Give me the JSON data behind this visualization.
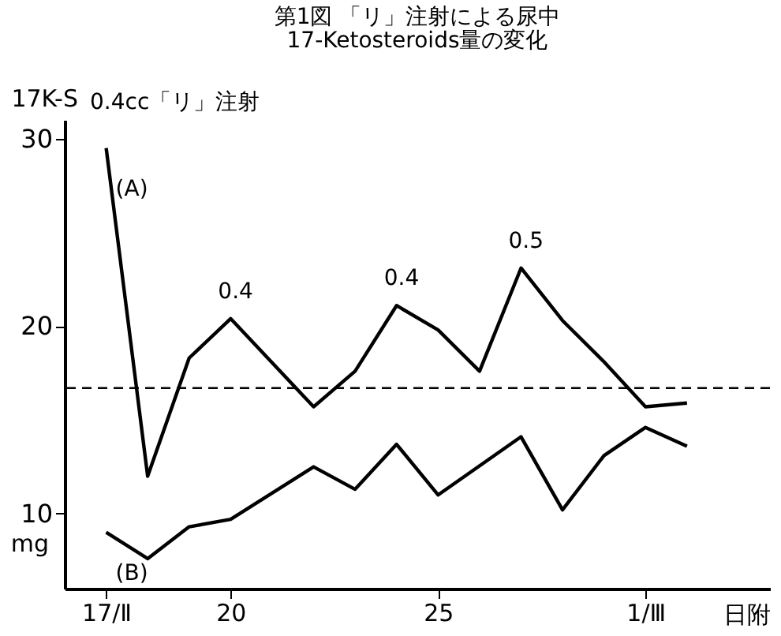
{
  "chart_data": {
    "type": "line",
    "title": "第1図 「リ」注射による尿中",
    "subtitle": "17-Ketosteroids量の変化",
    "xlabel": "日附",
    "ylabel": "17K-S",
    "series": [
      {
        "name": "(A)",
        "color": "#000000",
        "x": [
          "--02-17",
          "--02-18",
          "--02-19",
          "--02-20",
          "--02-22",
          "--02-23",
          "--02-24",
          "--02-25",
          "--02-26",
          "--02-27",
          "--02-28",
          "--02-29",
          "--03-01",
          "--03-02"
        ],
        "values": [
          29.5,
          12.0,
          18.3,
          20.4,
          15.7,
          17.6,
          21.1,
          19.8,
          17.6,
          23.1,
          20.3,
          18.1,
          15.7,
          15.9
        ]
      },
      {
        "name": "(B)",
        "color": "#000000",
        "x": [
          "--02-17",
          "--02-18",
          "--02-19",
          "--02-20",
          "--02-22",
          "--02-23",
          "--02-24",
          "--02-25",
          "--02-27",
          "--02-28",
          "--02-29",
          "--03-01",
          "--03-02"
        ],
        "values": [
          9.0,
          7.6,
          9.3,
          9.7,
          12.5,
          11.3,
          13.7,
          11.0,
          14.1,
          10.2,
          13.1,
          14.6,
          13.6
        ]
      }
    ],
    "xlim": [
      "--02-16",
      "--03-04"
    ],
    "xticks": [
      {
        "value": "--02-17",
        "label": "17/Ⅱ"
      },
      {
        "value": "--02-20",
        "label": "20"
      },
      {
        "value": "--02-25",
        "label": "25"
      },
      {
        "value": "--03-01",
        "label": "1/Ⅲ"
      }
    ],
    "ylim": [
      6,
      31
    ],
    "yticks": [
      10,
      20,
      30
    ],
    "ref_lines": [
      {
        "axis": "y",
        "value": 16.7,
        "line_style": "dashed"
      }
    ],
    "annotations": [
      "0.4cc「リ」注射",
      {
        "text": "0.4",
        "x": "--02-20",
        "y": 20.4
      },
      {
        "text": "0.4",
        "x": "--02-24",
        "y": 21.1
      },
      {
        "text": "0.5",
        "x": "--02-27",
        "y": 23.1
      },
      "mg"
    ],
    "grid": false,
    "legend": false,
    "marker": "none",
    "line_style": "solid"
  }
}
